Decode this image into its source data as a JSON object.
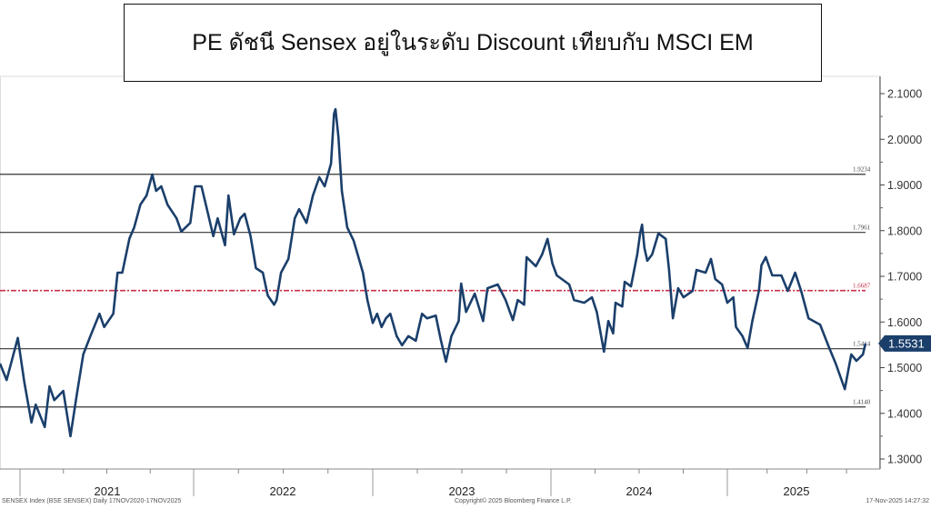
{
  "title": "PE ดัชนี Sensex อยู่ในระดับ Discount เทียบกับ MSCI EM",
  "footer": {
    "left": "SENSEX Index (BSE SENSEX) Daily 17NOV2020-17NOV2025",
    "center": "Copyright© 2025 Bloomberg Finance L.P.",
    "right": "17-Nov-2025 14:27:32"
  },
  "colors": {
    "line": "#1b3f6b",
    "mean": "#c8324c",
    "bands": "#333333",
    "tag": "#1b3f6b"
  },
  "chart_data": {
    "type": "line",
    "title": "",
    "xlabel": "",
    "ylabel": "",
    "ylim": [
      1.3,
      2.1
    ],
    "y_axis_position": "right",
    "yticks": [
      "1.3000",
      "1.4000",
      "1.5000",
      "1.6000",
      "1.7000",
      "1.8000",
      "1.9000",
      "2.0000",
      "2.1000"
    ],
    "xticks": [
      "2021",
      "2022",
      "2023",
      "2024",
      "2025"
    ],
    "grid": false,
    "last_value_label": "1.5531",
    "reference_lines": [
      {
        "label": "1.9234",
        "value": 1.9234,
        "style": "solid"
      },
      {
        "label": "1.7961",
        "value": 1.7961,
        "style": "solid"
      },
      {
        "label": "1.6687",
        "value": 1.6687,
        "style": "dash-dot"
      },
      {
        "label": "1.5414",
        "value": 1.5414,
        "style": "solid"
      },
      {
        "label": "1.4140",
        "value": 1.414,
        "style": "solid"
      }
    ],
    "series": [
      {
        "points": [
          [
            "2020-11-17",
            1.509
          ],
          [
            "2020-12-02",
            1.473
          ],
          [
            "2020-12-27",
            1.565
          ],
          [
            "2021-01-10",
            1.469
          ],
          [
            "2021-01-25",
            1.38
          ],
          [
            "2021-02-03",
            1.419
          ],
          [
            "2021-02-22",
            1.37
          ],
          [
            "2021-03-04",
            1.459
          ],
          [
            "2021-03-14",
            1.429
          ],
          [
            "2021-04-02",
            1.449
          ],
          [
            "2021-04-17",
            1.35
          ],
          [
            "2021-04-30",
            1.439
          ],
          [
            "2021-05-14",
            1.529
          ],
          [
            "2021-05-29",
            1.569
          ],
          [
            "2021-06-17",
            1.618
          ],
          [
            "2021-06-27",
            1.589
          ],
          [
            "2021-07-16",
            1.618
          ],
          [
            "2021-07-25",
            1.708
          ],
          [
            "2021-08-04",
            1.708
          ],
          [
            "2021-08-19",
            1.783
          ],
          [
            "2021-08-29",
            1.807
          ],
          [
            "2021-09-11",
            1.857
          ],
          [
            "2021-09-24",
            1.877
          ],
          [
            "2021-10-06",
            1.923
          ],
          [
            "2021-10-14",
            1.887
          ],
          [
            "2021-10-25",
            1.897
          ],
          [
            "2021-11-07",
            1.857
          ],
          [
            "2021-11-26",
            1.827
          ],
          [
            "2021-12-06",
            1.798
          ],
          [
            "2021-12-25",
            1.817
          ],
          [
            "2022-01-04",
            1.897
          ],
          [
            "2022-01-17",
            1.897
          ],
          [
            "2022-01-28",
            1.847
          ],
          [
            "2022-02-10",
            1.788
          ],
          [
            "2022-02-19",
            1.827
          ],
          [
            "2022-03-06",
            1.768
          ],
          [
            "2022-03-13",
            1.877
          ],
          [
            "2022-03-24",
            1.792
          ],
          [
            "2022-04-06",
            1.827
          ],
          [
            "2022-04-15",
            1.837
          ],
          [
            "2022-04-27",
            1.788
          ],
          [
            "2022-05-08",
            1.718
          ],
          [
            "2022-05-22",
            1.708
          ],
          [
            "2022-06-01",
            1.658
          ],
          [
            "2022-06-14",
            1.638
          ],
          [
            "2022-06-19",
            1.648
          ],
          [
            "2022-06-28",
            1.708
          ],
          [
            "2022-07-13",
            1.738
          ],
          [
            "2022-07-26",
            1.827
          ],
          [
            "2022-08-04",
            1.847
          ],
          [
            "2022-08-19",
            1.817
          ],
          [
            "2022-09-01",
            1.877
          ],
          [
            "2022-09-14",
            1.917
          ],
          [
            "2022-09-25",
            1.897
          ],
          [
            "2022-10-08",
            1.947
          ],
          [
            "2022-10-14",
            2.056
          ],
          [
            "2022-10-17",
            2.066
          ],
          [
            "2022-10-23",
            2.006
          ],
          [
            "2022-10-30",
            1.887
          ],
          [
            "2022-11-10",
            1.807
          ],
          [
            "2022-11-23",
            1.778
          ],
          [
            "2022-12-12",
            1.708
          ],
          [
            "2022-12-21",
            1.648
          ],
          [
            "2023-01-01",
            1.598
          ],
          [
            "2023-01-10",
            1.618
          ],
          [
            "2023-01-19",
            1.589
          ],
          [
            "2023-01-28",
            1.608
          ],
          [
            "2023-02-06",
            1.618
          ],
          [
            "2023-02-19",
            1.569
          ],
          [
            "2023-03-02",
            1.549
          ],
          [
            "2023-03-15",
            1.569
          ],
          [
            "2023-03-30",
            1.559
          ],
          [
            "2023-04-12",
            1.618
          ],
          [
            "2023-04-22",
            1.608
          ],
          [
            "2023-05-10",
            1.614
          ],
          [
            "2023-05-20",
            1.563
          ],
          [
            "2023-05-31",
            1.513
          ],
          [
            "2023-06-11",
            1.569
          ],
          [
            "2023-06-26",
            1.602
          ],
          [
            "2023-07-01",
            1.684
          ],
          [
            "2023-07-11",
            1.622
          ],
          [
            "2023-07-29",
            1.662
          ],
          [
            "2023-08-15",
            1.602
          ],
          [
            "2023-08-24",
            1.674
          ],
          [
            "2023-09-14",
            1.682
          ],
          [
            "2023-09-30",
            1.648
          ],
          [
            "2023-10-15",
            1.604
          ],
          [
            "2023-10-25",
            1.648
          ],
          [
            "2023-11-07",
            1.638
          ],
          [
            "2023-11-12",
            1.742
          ],
          [
            "2023-12-01",
            1.722
          ],
          [
            "2023-12-14",
            1.748
          ],
          [
            "2023-12-25",
            1.782
          ],
          [
            "2024-01-04",
            1.728
          ],
          [
            "2024-01-13",
            1.702
          ],
          [
            "2024-02-08",
            1.682
          ],
          [
            "2024-02-18",
            1.648
          ],
          [
            "2024-03-10",
            1.642
          ],
          [
            "2024-03-26",
            1.654
          ],
          [
            "2024-04-05",
            1.622
          ],
          [
            "2024-04-20",
            1.535
          ],
          [
            "2024-04-29",
            1.602
          ],
          [
            "2024-05-09",
            1.575
          ],
          [
            "2024-05-14",
            1.642
          ],
          [
            "2024-05-28",
            1.634
          ],
          [
            "2024-06-02",
            1.688
          ],
          [
            "2024-06-15",
            1.678
          ],
          [
            "2024-06-28",
            1.748
          ],
          [
            "2024-07-04",
            1.794
          ],
          [
            "2024-07-08",
            1.813
          ],
          [
            "2024-07-13",
            1.762
          ],
          [
            "2024-07-19",
            1.734
          ],
          [
            "2024-07-29",
            1.748
          ],
          [
            "2024-08-11",
            1.794
          ],
          [
            "2024-08-26",
            1.782
          ],
          [
            "2024-09-02",
            1.714
          ],
          [
            "2024-09-10",
            1.608
          ],
          [
            "2024-09-21",
            1.674
          ],
          [
            "2024-10-02",
            1.654
          ],
          [
            "2024-10-21",
            1.668
          ],
          [
            "2024-10-29",
            1.714
          ],
          [
            "2024-11-17",
            1.708
          ],
          [
            "2024-11-28",
            1.738
          ],
          [
            "2024-12-07",
            1.694
          ],
          [
            "2024-12-21",
            1.682
          ],
          [
            "2025-01-01",
            1.642
          ],
          [
            "2025-01-15",
            1.654
          ],
          [
            "2025-01-21",
            1.589
          ],
          [
            "2025-02-05",
            1.569
          ],
          [
            "2025-02-17",
            1.543
          ],
          [
            "2025-02-28",
            1.602
          ],
          [
            "2025-03-15",
            1.668
          ],
          [
            "2025-03-21",
            1.724
          ],
          [
            "2025-03-31",
            1.742
          ],
          [
            "2025-04-15",
            1.702
          ],
          [
            "2025-05-06",
            1.702
          ],
          [
            "2025-05-21",
            1.668
          ],
          [
            "2025-06-07",
            1.708
          ],
          [
            "2025-06-21",
            1.668
          ],
          [
            "2025-07-08",
            1.608
          ],
          [
            "2025-08-04",
            1.594
          ],
          [
            "2025-08-25",
            1.543
          ],
          [
            "2025-09-09",
            1.509
          ],
          [
            "2025-09-30",
            1.453
          ],
          [
            "2025-10-15",
            1.529
          ],
          [
            "2025-10-27",
            1.515
          ],
          [
            "2025-11-11",
            1.529
          ],
          [
            "2025-11-17",
            1.5531
          ]
        ]
      }
    ]
  }
}
